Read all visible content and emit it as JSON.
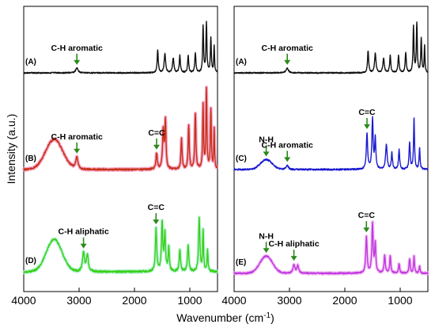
{
  "chart_data": {
    "type": "line",
    "ylabel": "Intensity (a.u.)",
    "xlabel": "Wavenumber (cm",
    "xlabel_sup": "-1",
    "xlabel_close": ")",
    "x_ticks": [
      4000,
      3000,
      2000,
      1000
    ],
    "x_tick_labels": [
      "4000",
      "3000",
      "2000",
      "1000"
    ],
    "xlim": [
      4000,
      500
    ],
    "grid": false,
    "annotation_color": "#2a8a1a",
    "panels": [
      {
        "name": "left",
        "traces": [
          {
            "label": "(A)",
            "color": "#111111",
            "y_base": 92,
            "amp": 62,
            "noise": 1.5,
            "peaks": [
              [
                3040,
                0.1,
                25
              ],
              [
                1580,
                0.45,
                12
              ],
              [
                1450,
                0.4,
                15
              ],
              [
                1300,
                0.3,
                15
              ],
              [
                1180,
                0.35,
                12
              ],
              [
                1030,
                0.35,
                12
              ],
              [
                900,
                0.4,
                12
              ],
              [
                760,
                0.95,
                10
              ],
              [
                700,
                1.0,
                10
              ],
              [
                620,
                0.7,
                10
              ],
              [
                560,
                0.55,
                8
              ]
            ],
            "annotations": [
              {
                "text": "C-H aromatic",
                "x": 3040
              }
            ]
          },
          {
            "label": "(B)",
            "color": "#c83018",
            "shadow": "#f08cb4",
            "y_base": 214,
            "amp": 100,
            "noise": 2.2,
            "broad": [
              [
                3450,
                0.38,
                220
              ]
            ],
            "peaks": [
              [
                3040,
                0.15,
                25
              ],
              [
                1600,
                0.2,
                15
              ],
              [
                1480,
                0.5,
                15
              ],
              [
                1440,
                0.6,
                12
              ],
              [
                1150,
                0.4,
                12
              ],
              [
                1020,
                0.55,
                12
              ],
              [
                900,
                0.7,
                12
              ],
              [
                760,
                0.8,
                10
              ],
              [
                700,
                1.0,
                10
              ],
              [
                620,
                0.75,
                10
              ],
              [
                560,
                0.5,
                8
              ]
            ],
            "annotations": [
              {
                "text": "C-H aromatic",
                "x": 3040
              },
              {
                "text": "C=C",
                "x": 1600
              }
            ]
          },
          {
            "label": "(D)",
            "color": "#3ad018",
            "shadow": "#a8f0d0",
            "y_base": 343,
            "amp": 68,
            "noise": 2.6,
            "broad": [
              [
                3450,
                0.6,
                200
              ]
            ],
            "peaks": [
              [
                2920,
                0.35,
                22
              ],
              [
                2850,
                0.3,
                20
              ],
              [
                1610,
                0.8,
                14
              ],
              [
                1500,
                0.9,
                14
              ],
              [
                1450,
                0.7,
                14
              ],
              [
                1380,
                0.45,
                12
              ],
              [
                1180,
                0.4,
                14
              ],
              [
                1030,
                0.5,
                14
              ],
              [
                830,
                1.0,
                14
              ],
              [
                760,
                0.75,
                10
              ],
              [
                680,
                0.4,
                10
              ]
            ],
            "annotations": [
              {
                "text": "C-H aliphatic",
                "x": 2920
              },
              {
                "text": "C=C",
                "x": 1610
              }
            ]
          }
        ]
      },
      {
        "name": "right",
        "traces": [
          {
            "label": "(A)",
            "color": "#111111",
            "y_base": 92,
            "amp": 62,
            "noise": 1.5,
            "peaks": [
              [
                3040,
                0.1,
                25
              ],
              [
                1580,
                0.45,
                12
              ],
              [
                1450,
                0.4,
                15
              ],
              [
                1300,
                0.3,
                15
              ],
              [
                1180,
                0.35,
                12
              ],
              [
                1030,
                0.35,
                12
              ],
              [
                900,
                0.4,
                12
              ],
              [
                760,
                0.95,
                10
              ],
              [
                700,
                1.0,
                10
              ],
              [
                620,
                0.7,
                10
              ],
              [
                560,
                0.55,
                8
              ]
            ],
            "annotations": [
              {
                "text": "C-H aromatic",
                "x": 3040
              }
            ]
          },
          {
            "label": "(C)",
            "color": "#1a1ad0",
            "y_base": 214,
            "amp": 70,
            "noise": 2.0,
            "broad": [
              [
                3420,
                0.18,
                150
              ]
            ],
            "peaks": [
              [
                3040,
                0.08,
                25
              ],
              [
                1600,
                0.65,
                14
              ],
              [
                1500,
                0.9,
                14
              ],
              [
                1450,
                0.55,
                12
              ],
              [
                1250,
                0.45,
                16
              ],
              [
                1150,
                0.3,
                12
              ],
              [
                1020,
                0.35,
                12
              ],
              [
                830,
                0.5,
                12
              ],
              [
                750,
                0.95,
                10
              ],
              [
                650,
                0.4,
                10
              ]
            ],
            "annotations": [
              {
                "text": "N-H",
                "x": 3420
              },
              {
                "text": "C-H aromatic",
                "x": 3040
              },
              {
                "text": "C=C",
                "x": 1600
              }
            ]
          },
          {
            "label": "(E)",
            "color": "#c038e0",
            "shadow": "#f0b0f0",
            "y_base": 345,
            "amp": 62,
            "noise": 1.8,
            "broad": [
              [
                3420,
                0.35,
                160
              ]
            ],
            "peaks": [
              [
                2920,
                0.18,
                20
              ],
              [
                2850,
                0.15,
                20
              ],
              [
                1610,
                0.75,
                14
              ],
              [
                1500,
                1.0,
                14
              ],
              [
                1450,
                0.6,
                12
              ],
              [
                1280,
                0.35,
                14
              ],
              [
                1180,
                0.35,
                12
              ],
              [
                1020,
                0.2,
                12
              ],
              [
                830,
                0.3,
                12
              ],
              [
                750,
                0.35,
                10
              ],
              [
                650,
                0.15,
                10
              ]
            ],
            "annotations": [
              {
                "text": "N-H",
                "x": 3420
              },
              {
                "text": "C-H aliphatic",
                "x": 2920
              },
              {
                "text": "C=C",
                "x": 1610
              }
            ]
          }
        ]
      }
    ]
  }
}
